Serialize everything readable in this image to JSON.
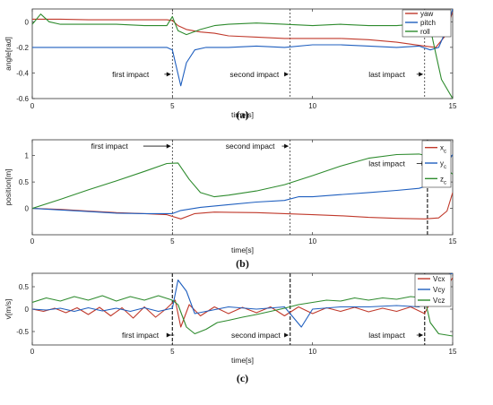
{
  "chart_data": [
    {
      "type": "line",
      "caption": "(a)",
      "xlabel": "time[s]",
      "ylabel": "angle[rad]",
      "xlim": [
        0,
        15
      ],
      "ylim": [
        -0.6,
        0.1
      ],
      "xticks": [
        0,
        5,
        10,
        15
      ],
      "yticks": [
        -0.6,
        -0.4,
        -0.2,
        0
      ],
      "ytick_labels": [
        "-0.6",
        "-0.4",
        "-0.2",
        "0"
      ],
      "legend_position": "top-right",
      "vlines": [
        {
          "x": 5.0,
          "bold": false
        },
        {
          "x": 9.2,
          "bold": false
        },
        {
          "x": 14.0,
          "bold": false
        }
      ],
      "annotations": [
        {
          "text": "first impact",
          "x": 2.85,
          "y": -0.41,
          "arrow_to": [
            4.95,
            -0.41
          ]
        },
        {
          "text": "second impact",
          "x": 7.05,
          "y": -0.41,
          "arrow_to": [
            9.15,
            -0.41
          ]
        },
        {
          "text": "last impact",
          "x": 12.0,
          "y": -0.41,
          "arrow_to": [
            13.95,
            -0.41
          ]
        }
      ],
      "series": [
        {
          "name": "yaw",
          "color": "#c0392b",
          "x": [
            0,
            1,
            2,
            3,
            4,
            4.8,
            5.0,
            5.2,
            5.5,
            6,
            6.5,
            7,
            8,
            9,
            10,
            11,
            12,
            13,
            14,
            14.4,
            14.7,
            15
          ],
          "y": [
            0.02,
            0.02,
            0.015,
            0.015,
            0.015,
            0.015,
            0.01,
            -0.03,
            -0.06,
            -0.08,
            -0.09,
            -0.11,
            -0.12,
            -0.13,
            -0.13,
            -0.13,
            -0.14,
            -0.16,
            -0.19,
            -0.2,
            -0.12,
            0.08
          ]
        },
        {
          "name": "pitch",
          "color": "#1f5fbf",
          "x": [
            0,
            1,
            2,
            3,
            4,
            4.8,
            5.0,
            5.15,
            5.3,
            5.5,
            5.8,
            6.2,
            7,
            8,
            9,
            10,
            11,
            12,
            13,
            13.8,
            14.2,
            14.5,
            14.8,
            15
          ],
          "y": [
            -0.2,
            -0.2,
            -0.2,
            -0.2,
            -0.2,
            -0.2,
            -0.22,
            -0.36,
            -0.5,
            -0.32,
            -0.22,
            -0.2,
            -0.2,
            -0.19,
            -0.2,
            -0.18,
            -0.18,
            -0.19,
            -0.2,
            -0.19,
            -0.22,
            -0.2,
            -0.05,
            0.1
          ]
        },
        {
          "name": "roll",
          "color": "#2e8b2e",
          "x": [
            0,
            0.3,
            0.6,
            1,
            2,
            3,
            4,
            4.8,
            5.0,
            5.2,
            5.5,
            6,
            6.5,
            7,
            8,
            9,
            10,
            11,
            12,
            13,
            13.6,
            14.0,
            14.2,
            14.4,
            14.6,
            15
          ],
          "y": [
            -0.02,
            0.06,
            0.0,
            -0.02,
            -0.02,
            -0.02,
            -0.03,
            -0.03,
            0.04,
            -0.07,
            -0.1,
            -0.06,
            -0.03,
            -0.02,
            -0.01,
            -0.02,
            -0.03,
            -0.02,
            -0.03,
            -0.03,
            -0.02,
            0.06,
            -0.05,
            -0.25,
            -0.45,
            -0.6
          ]
        }
      ]
    },
    {
      "type": "line",
      "caption": "(b)",
      "xlabel": "time[s]",
      "ylabel": "position[m]",
      "xlim": [
        0,
        15
      ],
      "ylim": [
        -0.5,
        1.3
      ],
      "xticks": [
        0,
        5,
        10,
        15
      ],
      "yticks": [
        0,
        0.5,
        1
      ],
      "ytick_labels": [
        "0",
        "0.5",
        "1"
      ],
      "legend_position": "top-right",
      "vlines": [
        {
          "x": 5.0,
          "bold": false
        },
        {
          "x": 9.2,
          "bold": false
        },
        {
          "x": 14.1,
          "bold": true
        }
      ],
      "annotations": [
        {
          "text": "first impact",
          "x": 2.1,
          "y": 1.18,
          "arrow_to": [
            4.95,
            1.18
          ]
        },
        {
          "text": "second impact",
          "x": 6.9,
          "y": 1.18,
          "arrow_to": [
            9.15,
            1.18
          ]
        },
        {
          "text": "last impact",
          "x": 12.0,
          "y": 0.85,
          "arrow_to": [
            14.05,
            0.85
          ]
        }
      ],
      "series": [
        {
          "name": "x",
          "sub": "c",
          "color": "#c0392b",
          "x": [
            0,
            1,
            2,
            3,
            4,
            4.8,
            5.3,
            5.8,
            6.5,
            8,
            9,
            10,
            11,
            12,
            13,
            14,
            14.5,
            14.8,
            15
          ],
          "y": [
            0,
            -0.02,
            -0.05,
            -0.08,
            -0.1,
            -0.12,
            -0.2,
            -0.1,
            -0.07,
            -0.08,
            -0.1,
            -0.12,
            -0.14,
            -0.17,
            -0.19,
            -0.2,
            -0.18,
            -0.05,
            0.3
          ]
        },
        {
          "name": "y",
          "sub": "c",
          "color": "#1f5fbf",
          "x": [
            0,
            1,
            2,
            3,
            4,
            5,
            5.3,
            6,
            7,
            8,
            9,
            9.5,
            10,
            11,
            12,
            13,
            13.8,
            14.2,
            14.6,
            15
          ],
          "y": [
            0,
            -0.03,
            -0.06,
            -0.09,
            -0.1,
            -0.1,
            -0.04,
            0.02,
            0.07,
            0.12,
            0.15,
            0.22,
            0.22,
            0.26,
            0.3,
            0.34,
            0.38,
            0.45,
            0.7,
            1.02
          ]
        },
        {
          "name": "z",
          "sub": "c",
          "color": "#2e8b2e",
          "x": [
            0,
            1,
            2,
            3,
            4,
            4.8,
            5.2,
            5.6,
            6.0,
            6.5,
            7,
            8,
            9,
            10,
            11,
            12,
            13,
            13.8,
            14.2,
            14.5,
            15
          ],
          "y": [
            0,
            0.17,
            0.35,
            0.52,
            0.7,
            0.85,
            0.86,
            0.55,
            0.3,
            0.22,
            0.25,
            0.33,
            0.45,
            0.62,
            0.8,
            0.95,
            1.02,
            1.03,
            0.98,
            0.85,
            0.65
          ]
        }
      ]
    },
    {
      "type": "line",
      "caption": "(c)",
      "xlabel": "time[s]",
      "ylabel": "v[m/s]",
      "xlim": [
        0,
        15
      ],
      "ylim": [
        -0.8,
        0.8
      ],
      "xticks": [
        0,
        5,
        10,
        15
      ],
      "yticks": [
        -0.5,
        0,
        0.5
      ],
      "ytick_labels": [
        "-0.5",
        "0",
        "0.5"
      ],
      "legend_position": "top-right",
      "vlines": [
        {
          "x": 5.0,
          "bold": true
        },
        {
          "x": 9.2,
          "bold": true
        },
        {
          "x": 14.0,
          "bold": true
        }
      ],
      "annotations": [
        {
          "text": "first impact",
          "x": 3.2,
          "y": -0.58,
          "arrow_to": [
            4.95,
            -0.58
          ]
        },
        {
          "text": "second impact",
          "x": 7.1,
          "y": -0.58,
          "arrow_to": [
            9.15,
            -0.58
          ]
        },
        {
          "text": "last impact",
          "x": 12.0,
          "y": -0.58,
          "arrow_to": [
            13.95,
            -0.58
          ]
        }
      ],
      "series": [
        {
          "name": "Vcx",
          "color": "#c0392b",
          "x": [
            0,
            0.4,
            0.8,
            1.2,
            1.6,
            2.0,
            2.4,
            2.8,
            3.2,
            3.6,
            4.0,
            4.4,
            4.8,
            5.1,
            5.3,
            5.6,
            6.0,
            6.5,
            7.0,
            7.5,
            8.0,
            8.5,
            9.0,
            9.5,
            10.0,
            10.5,
            11.0,
            11.5,
            12.0,
            12.5,
            13.0,
            13.5,
            14.0,
            14.2,
            14.5,
            14.8,
            15
          ],
          "y": [
            0.0,
            -0.05,
            0.02,
            -0.08,
            0.03,
            -0.12,
            0.04,
            -0.15,
            0.03,
            -0.2,
            0.05,
            -0.18,
            0.02,
            0.2,
            -0.4,
            0.1,
            -0.15,
            0.05,
            -0.1,
            0.04,
            -0.08,
            0.05,
            -0.15,
            0.05,
            -0.1,
            0.03,
            -0.05,
            0.04,
            -0.06,
            0.02,
            -0.05,
            0.05,
            -0.1,
            0.15,
            0.3,
            0.5,
            0.7
          ]
        },
        {
          "name": "Vcy",
          "color": "#1f5fbf",
          "x": [
            0,
            0.5,
            1.0,
            1.5,
            2.0,
            2.5,
            3.0,
            3.5,
            4.0,
            4.5,
            5.0,
            5.2,
            5.5,
            5.8,
            6.2,
            7.0,
            8.0,
            9.0,
            9.6,
            10.0,
            11.0,
            12.0,
            13.0,
            13.8,
            14.2,
            14.5,
            15
          ],
          "y": [
            0.0,
            -0.02,
            0.02,
            -0.05,
            0.03,
            -0.04,
            0.02,
            -0.05,
            0.03,
            -0.05,
            0.02,
            0.65,
            0.4,
            -0.1,
            -0.05,
            0.05,
            0.0,
            0.05,
            -0.4,
            0.0,
            0.05,
            0.05,
            0.08,
            0.05,
            0.3,
            0.7,
            0.8
          ]
        },
        {
          "name": "Vcz",
          "color": "#2e8b2e",
          "x": [
            0,
            0.5,
            1.0,
            1.5,
            2.0,
            2.5,
            3.0,
            3.5,
            4.0,
            4.5,
            5.0,
            5.2,
            5.5,
            5.8,
            6.2,
            6.6,
            7.0,
            7.5,
            8.0,
            8.5,
            9.0,
            9.5,
            10.0,
            10.5,
            11.0,
            11.5,
            12.0,
            12.5,
            13.0,
            13.5,
            14.0,
            14.2,
            14.5,
            15
          ],
          "y": [
            0.15,
            0.25,
            0.18,
            0.28,
            0.2,
            0.3,
            0.18,
            0.28,
            0.2,
            0.3,
            0.2,
            0.1,
            -0.4,
            -0.55,
            -0.45,
            -0.3,
            -0.25,
            -0.18,
            -0.12,
            -0.05,
            0.02,
            0.1,
            0.15,
            0.2,
            0.18,
            0.25,
            0.2,
            0.25,
            0.22,
            0.28,
            0.25,
            -0.3,
            -0.55,
            -0.6
          ]
        }
      ]
    }
  ]
}
